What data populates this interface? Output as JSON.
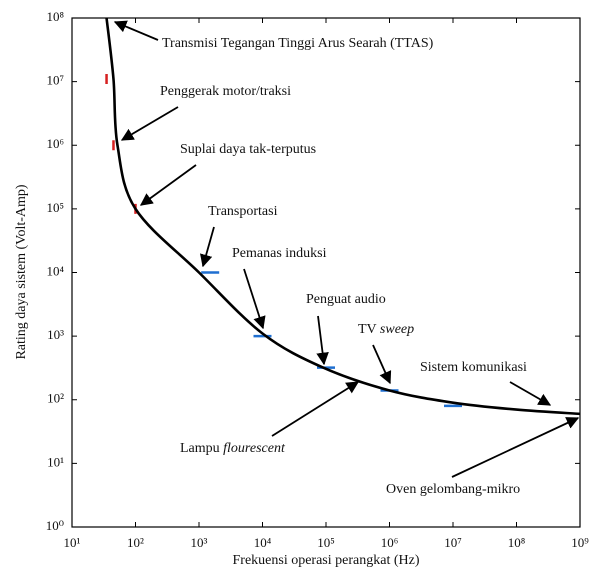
{
  "chart_data": {
    "type": "line",
    "xscale": "log",
    "yscale": "log",
    "xlabel": "Frekuensi operasi perangkat (Hz)",
    "ylabel": "Rating daya sistem (Volt-Amp)",
    "xlim": [
      10,
      1000000000
    ],
    "ylim": [
      1,
      100000000
    ],
    "xticks": [
      {
        "value": 10,
        "label": "10¹"
      },
      {
        "value": 100,
        "label": "10²"
      },
      {
        "value": 1000,
        "label": "10³"
      },
      {
        "value": 10000,
        "label": "10⁴"
      },
      {
        "value": 100000,
        "label": "10⁵"
      },
      {
        "value": 1000000,
        "label": "10⁶"
      },
      {
        "value": 10000000,
        "label": "10⁷"
      },
      {
        "value": 100000000,
        "label": "10⁸"
      },
      {
        "value": 1000000000,
        "label": "10⁹"
      }
    ],
    "yticks": [
      {
        "value": 1,
        "label": "10⁰"
      },
      {
        "value": 10,
        "label": "10¹"
      },
      {
        "value": 100,
        "label": "10²"
      },
      {
        "value": 1000,
        "label": "10³"
      },
      {
        "value": 10000,
        "label": "10⁴"
      },
      {
        "value": 100000,
        "label": "10⁵"
      },
      {
        "value": 1000000,
        "label": "10⁶"
      },
      {
        "value": 10000000,
        "label": "10⁷"
      },
      {
        "value": 100000000,
        "label": "10⁸"
      }
    ],
    "curve": {
      "color": "#000000",
      "x": [
        35,
        45,
        52,
        100,
        1000,
        10000,
        90000,
        1000000,
        10000000,
        100000000,
        1000000000
      ],
      "y": [
        100000000,
        11000000,
        1000000,
        100000,
        10000,
        1100,
        320,
        140,
        90,
        70,
        60
      ]
    },
    "markers": {
      "x": [
        35,
        45,
        100,
        1500,
        10000,
        100000,
        1000000,
        10000000
      ],
      "y": [
        11000000,
        1000000,
        100000,
        10000,
        1000,
        320,
        140,
        80
      ],
      "colors": [
        "#d62020",
        "#d62020",
        "#d62020",
        "#1f6fd0",
        "#1f6fd0",
        "#1f6fd0",
        "#1f6fd0",
        "#1f6fd0"
      ]
    },
    "annotations": [
      {
        "text": "Transmisi Tegangan Tinggi Arus Searah (TTAS)"
      },
      {
        "text": "Penggerak motor/traksi"
      },
      {
        "text": "Suplai daya tak-terputus"
      },
      {
        "text": "Transportasi"
      },
      {
        "text": "Pemanas induksi"
      },
      {
        "text": "Penguat audio"
      },
      {
        "text": "TV ",
        "italic": "sweep"
      },
      {
        "text": "Sistem komunikasi"
      },
      {
        "text": "Lampu ",
        "italic": "flourescent"
      },
      {
        "text": "Oven gelombang-mikro"
      }
    ]
  }
}
